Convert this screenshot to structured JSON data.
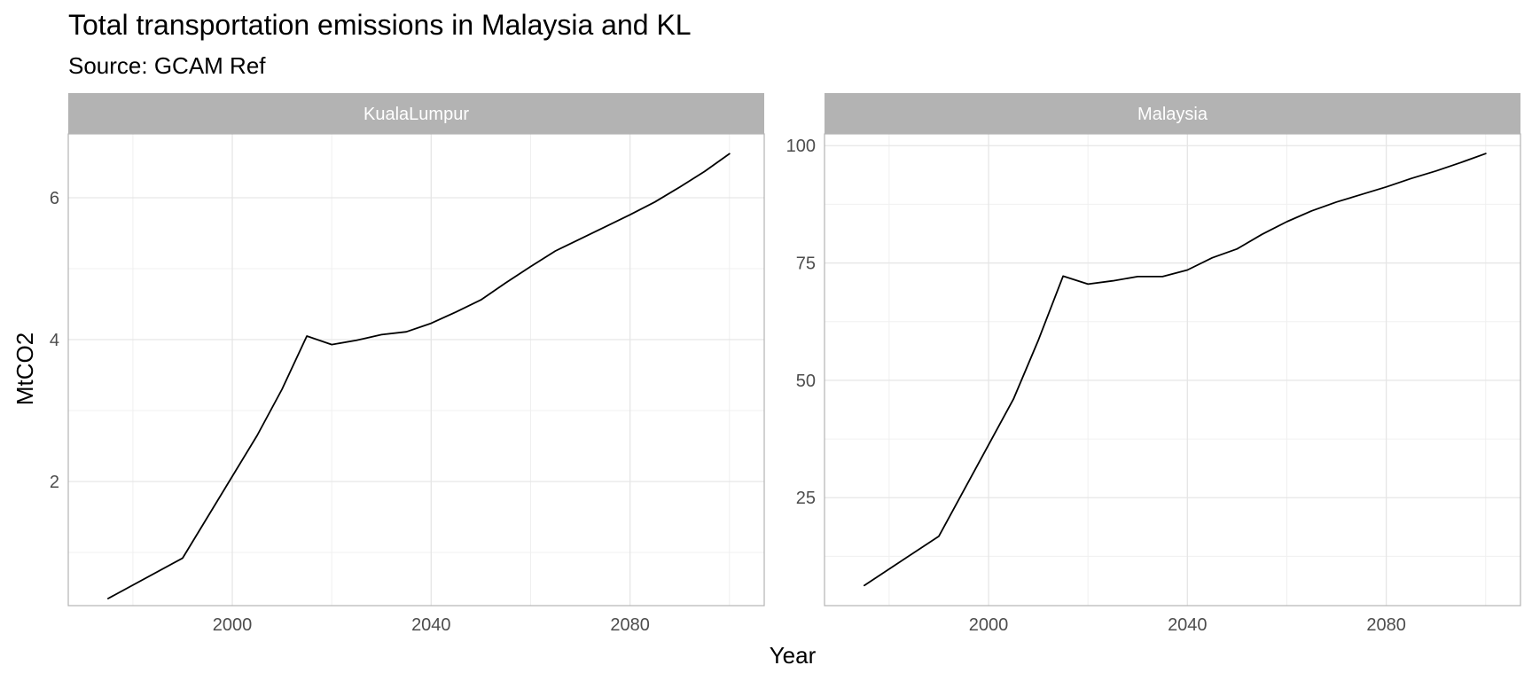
{
  "chart_data": {
    "type": "line",
    "title": "Total transportation emissions in Malaysia and KL",
    "subtitle": "Source: GCAM Ref",
    "xlabel": "Year",
    "ylabel": "MtCO2",
    "grid": true,
    "line_color": "#000000",
    "strip_color": "#b3b3b3",
    "grid_color": "#e6e6e6",
    "x": [
      1975,
      1990,
      2005,
      2010,
      2015,
      2020,
      2025,
      2030,
      2035,
      2040,
      2045,
      2050,
      2055,
      2060,
      2065,
      2070,
      2075,
      2080,
      2085,
      2090,
      2095,
      2100
    ],
    "xlim": [
      1967,
      2107
    ],
    "x_breaks": [
      2000,
      2040,
      2080
    ],
    "x_tick_labels": [
      "2000",
      "2040",
      "2080"
    ],
    "panels": [
      {
        "strip_label": "KualaLumpur",
        "ylim": [
          0.25,
          6.9
        ],
        "y_breaks": [
          2,
          4,
          6
        ],
        "y_tick_labels": [
          "2",
          "4",
          "6"
        ],
        "series": [
          {
            "values": [
              0.35,
              0.92,
              2.65,
              3.3,
              4.05,
              3.93,
              3.99,
              4.07,
              4.11,
              4.23,
              4.39,
              4.56,
              4.8,
              5.03,
              5.25,
              5.42,
              5.59,
              5.76,
              5.94,
              6.15,
              6.37,
              6.62
            ]
          }
        ]
      },
      {
        "strip_label": "Malaysia",
        "ylim": [
          2,
          102.5
        ],
        "y_breaks": [
          25,
          50,
          75,
          100
        ],
        "y_tick_labels": [
          "25",
          "50",
          "75",
          "100"
        ],
        "series": [
          {
            "values": [
              6.3,
              16.8,
              46,
              58.5,
              72.2,
              70.5,
              71.2,
              72.1,
              72.1,
              73.5,
              76.1,
              78,
              81.1,
              83.8,
              86.1,
              88,
              89.6,
              91.2,
              93,
              94.6,
              96.4,
              98.3
            ]
          }
        ]
      }
    ]
  }
}
